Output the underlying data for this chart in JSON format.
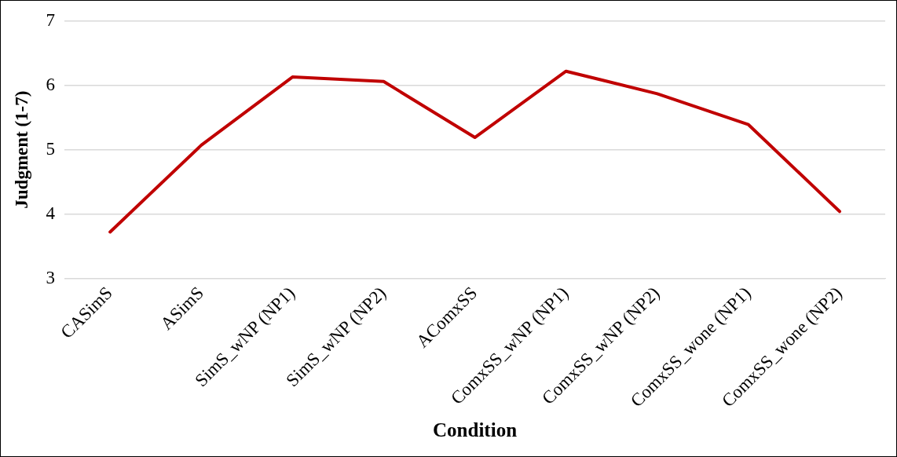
{
  "chart_data": {
    "type": "line",
    "xlabel": "Condition",
    "ylabel": "Judgment (1-7)",
    "categories": [
      "CASimS",
      "ASimS",
      "SimS_wNP (NP1)",
      "SimS_wNP (NP2)",
      "AComxSS",
      "ComxSS_wNP (NP1)",
      "ComxSS_wNP (NP2)",
      "ComxSS_wone (NP1)",
      "ComxSS_wone (NP2)"
    ],
    "series": [
      {
        "color": "#c00000",
        "values": [
          3.72,
          5.07,
          6.13,
          6.06,
          5.19,
          6.22,
          5.87,
          5.39,
          4.04
        ]
      }
    ],
    "ylim": [
      3,
      7
    ],
    "yticks": [
      3,
      4,
      5,
      6,
      7
    ],
    "grid": "y",
    "legend": false,
    "marker": "none",
    "line_style": "solid"
  }
}
